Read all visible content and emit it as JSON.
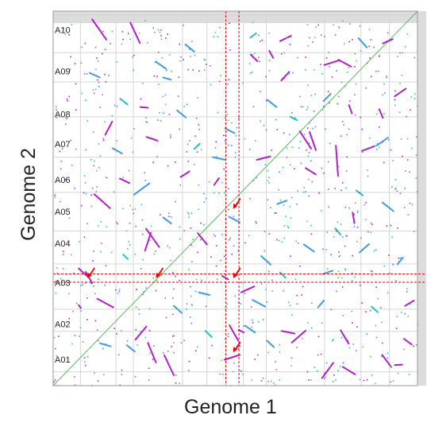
{
  "chart_data": {
    "type": "scatter",
    "title": "",
    "xlabel": "Genome 1",
    "ylabel": "Genome 2",
    "xlim": [
      0,
      100
    ],
    "ylim": [
      0,
      100
    ],
    "y_chromosome_labels": [
      "A01",
      "A02",
      "A03",
      "A04",
      "A05",
      "A06",
      "A07",
      "A08",
      "A09",
      "A10"
    ],
    "y_chromosome_label_positions": [
      7,
      16.5,
      27.5,
      38,
      46.5,
      55,
      64.5,
      72.5,
      84,
      95
    ],
    "x_grid_breaks": [
      7.5,
      17.2,
      22.0,
      35.5,
      42.2,
      52.2,
      58.5,
      74.5,
      84.5,
      92.3
    ],
    "y_grid_breaks": [
      3.7,
      14.5,
      20.4,
      29.8,
      32.5,
      41.3,
      51.6,
      61.0,
      71.8,
      81.1,
      88.9,
      99.0
    ],
    "highlight_x_range": [
      47.4,
      51.0
    ],
    "highlight_y_range": [
      27.6,
      29.8
    ],
    "diagonal": {
      "from": [
        0,
        0
      ],
      "to": [
        100,
        100
      ],
      "color": "#5cb85c"
    },
    "series": [
      {
        "name": "syntenic-blocks-magenta",
        "color": "#b41ec8",
        "segments": [
          [
            [
              10.7,
              97.8
            ],
            [
              14.6,
              92.4
            ]
          ],
          [
            [
              21.2,
              96.9
            ],
            [
              23.8,
              91.5
            ]
          ],
          [
            [
              14.3,
              67.0
            ],
            [
              16.2,
              70.5
            ]
          ],
          [
            [
              15.6,
              47.4
            ],
            [
              11.3,
              51.1
            ]
          ],
          [
            [
              25.6,
              66.4
            ],
            [
              28.4,
              65.5
            ]
          ],
          [
            [
              25.5,
              41.9
            ],
            [
              29.1,
              37.0
            ]
          ],
          [
            [
              25.2,
              36.0
            ],
            [
              26.8,
              40.8
            ]
          ],
          [
            [
              39.7,
              40.7
            ],
            [
              42.2,
              37.7
            ]
          ],
          [
            [
              9.4,
              29.2
            ],
            [
              7.0,
              31.3
            ]
          ],
          [
            [
              8.9,
              30.4
            ],
            [
              10.7,
              27.4
            ]
          ],
          [
            [
              12.1,
              23.2
            ],
            [
              16.5,
              20.9
            ]
          ],
          [
            [
              7.0,
              21.5
            ],
            [
              7.6,
              20.7
            ]
          ],
          [
            [
              30.5,
              8.1
            ],
            [
              33.1,
              2.8
            ]
          ],
          [
            [
              26.0,
              11.4
            ],
            [
              28.2,
              6.2
            ]
          ],
          [
            [
              22.6,
              12.3
            ],
            [
              25.6,
              15.8
            ]
          ],
          [
            [
              46.4,
              29.3
            ],
            [
              48.0,
              28.4
            ]
          ],
          [
            [
              47.0,
              6.9
            ],
            [
              51.2,
              8.2
            ]
          ],
          [
            [
              48.4,
              16.1
            ],
            [
              50.8,
              12.0
            ]
          ],
          [
            [
              50.9,
              14.9
            ],
            [
              52.3,
              14.2
            ]
          ],
          [
            [
              65.5,
              11.5
            ],
            [
              69.3,
              14.7
            ]
          ],
          [
            [
              62.7,
              14.6
            ],
            [
              66.3,
              13.9
            ]
          ],
          [
            [
              54.2,
              88.4
            ],
            [
              56.1,
              86.6
            ]
          ],
          [
            [
              70.4,
              67.7
            ],
            [
              72.1,
              62.9
            ]
          ],
          [
            [
              67.7,
              67.9
            ],
            [
              70.8,
              63.3
            ]
          ],
          [
            [
              77.6,
              64.1
            ],
            [
              78.2,
              56.0
            ]
          ],
          [
            [
              82.7,
              43.4
            ],
            [
              82.2,
              46.2
            ]
          ],
          [
            [
              84.8,
              62.7
            ],
            [
              88.1,
              63.9
            ]
          ],
          [
            [
              74.4,
              85.6
            ],
            [
              78.6,
              86.9
            ]
          ],
          [
            [
              90.5,
              91.4
            ],
            [
              93.1,
              92.5
            ]
          ],
          [
            [
              93.8,
              77.3
            ],
            [
              96.8,
              79.3
            ]
          ],
          [
            [
              96.6,
              21.3
            ],
            [
              99.0,
              22.7
            ]
          ],
          [
            [
              90.3,
              8.2
            ],
            [
              92.8,
              5.0
            ]
          ],
          [
            [
              76.9,
              6.1
            ],
            [
              73.8,
              2.0
            ]
          ],
          [
            [
              79.5,
              5.0
            ],
            [
              82.9,
              3.0
            ]
          ],
          [
            [
              93.8,
              5.5
            ],
            [
              95.8,
              5.6
            ]
          ],
          [
            [
              81.1,
              11.2
            ],
            [
              78.9,
              14.8
            ]
          ],
          [
            [
              51.6,
              24.9
            ],
            [
              55.2,
              26.5
            ]
          ],
          [
            [
              96.3,
              12.5
            ],
            [
              98.4,
              11.0
            ]
          ],
          [
            [
              55.9,
              60.3
            ],
            [
              59.6,
              61.2
            ]
          ],
          [
            [
              44.2,
              53.6
            ],
            [
              45.5,
              55.4
            ]
          ],
          [
            [
              23.9,
              74.4
            ],
            [
              26.0,
              74.2
            ]
          ],
          [
            [
              81.2,
              74.9
            ],
            [
              82.0,
              72.7
            ]
          ],
          [
            [
              62.6,
              81.5
            ],
            [
              64.8,
              83.8
            ]
          ],
          [
            [
              62.3,
              92.0
            ],
            [
              65.3,
              93.4
            ]
          ],
          [
            [
              90.5,
              71.5
            ],
            [
              89.5,
              73.8
            ]
          ],
          [
            [
              69.3,
              58.1
            ],
            [
              72.1,
              56.4
            ]
          ],
          [
            [
              78.3,
              87.0
            ],
            [
              81.8,
              85.2
            ]
          ],
          [
            [
              60.4,
              87.5
            ],
            [
              59.3,
              89.4
            ]
          ],
          [
            [
              18.3,
              55.3
            ],
            [
              20.9,
              54.1
            ]
          ],
          [
            [
              35.0,
              55.7
            ],
            [
              37.4,
              57.2
            ]
          ]
        ]
      },
      {
        "name": "syntenic-blocks-blue",
        "color": "#3d9be0",
        "segments": [
          [
            [
              28.3,
              86.4
            ],
            [
              31.0,
              84.6
            ]
          ],
          [
            [
              22.2,
              51.0
            ],
            [
              26.4,
              54.0
            ]
          ],
          [
            [
              30.2,
              82.3
            ],
            [
              32.3,
              81.7
            ]
          ],
          [
            [
              43.8,
              61.0
            ],
            [
              47.2,
              60.3
            ]
          ],
          [
            [
              48.3,
              45.1
            ],
            [
              51.2,
              43.6
            ]
          ],
          [
            [
              52.7,
              16.0
            ],
            [
              55.4,
              14.2
            ]
          ],
          [
            [
              58.7,
              12.0
            ],
            [
              60.6,
              10.3
            ]
          ],
          [
            [
              54.7,
              22.9
            ],
            [
              58.2,
              21.1
            ]
          ],
          [
            [
              76.2,
              77.9
            ],
            [
              74.2,
              76.0
            ]
          ],
          [
            [
              90.4,
              48.9
            ],
            [
              93.4,
              46.6
            ]
          ],
          [
            [
              86.7,
              37.8
            ],
            [
              84.1,
              35.6
            ]
          ],
          [
            [
              94.5,
              32.4
            ],
            [
              96.0,
              34.2
            ]
          ],
          [
            [
              36.3,
              91.1
            ],
            [
              38.7,
              89.2
            ]
          ],
          [
            [
              86.1,
              90.3
            ],
            [
              83.8,
              92.8
            ]
          ],
          [
            [
              10.0,
              83.5
            ],
            [
              12.8,
              82.3
            ]
          ],
          [
            [
              47.2,
              68.7
            ],
            [
              49.8,
              67.4
            ]
          ],
          [
            [
              36.4,
              71.6
            ],
            [
              34.0,
              73.5
            ]
          ],
          [
            [
              64.1,
              49.4
            ],
            [
              61.5,
              48.5
            ]
          ],
          [
            [
              57.1,
              34.6
            ],
            [
              59.7,
              32.3
            ]
          ],
          [
            [
              74.0,
              29.8
            ],
            [
              76.7,
              30.7
            ]
          ],
          [
            [
              72.7,
              20.9
            ],
            [
              74.3,
              22.7
            ]
          ],
          [
            [
              22.4,
              9.1
            ],
            [
              20.2,
              10.8
            ]
          ],
          [
            [
              35.3,
              19.4
            ],
            [
              33.1,
              21.3
            ]
          ],
          [
            [
              42.9,
              24.2
            ],
            [
              40.0,
              24.9
            ]
          ],
          [
            [
              68.8,
              37.7
            ],
            [
              71.6,
              35.8
            ]
          ],
          [
            [
              30.2,
              44.9
            ],
            [
              32.4,
              43.3
            ]
          ],
          [
            [
              16.3,
              63.4
            ],
            [
              18.9,
              62.0
            ]
          ],
          [
            [
              58.8,
              76.3
            ],
            [
              61.3,
              74.4
            ]
          ],
          [
            [
              88.8,
              64.1
            ],
            [
              91.9,
              66.2
            ]
          ],
          [
            [
              12.9,
              11.3
            ],
            [
              15.8,
              10.5
            ]
          ]
        ]
      },
      {
        "name": "syntenic-blocks-cyan",
        "color": "#1fc4bf",
        "segments": [
          [
            [
              38.7,
              63.2
            ],
            [
              40.2,
              64.6
            ]
          ],
          [
            [
              65.1,
              71.8
            ],
            [
              66.9,
              70.9
            ]
          ],
          [
            [
              83.2,
              52.1
            ],
            [
              85.0,
              50.8
            ]
          ],
          [
            [
              62.3,
              30.2
            ],
            [
              63.8,
              28.8
            ]
          ],
          [
            [
              20.5,
              33.8
            ],
            [
              19.2,
              35.0
            ]
          ],
          [
            [
              54.1,
              92.9
            ],
            [
              55.7,
              94.1
            ]
          ],
          [
            [
              77.4,
              42.0
            ],
            [
              78.9,
              40.3
            ]
          ],
          [
            [
              41.8,
              14.6
            ],
            [
              43.5,
              13.0
            ]
          ],
          [
            [
              87.4,
              21.1
            ],
            [
              89.1,
              19.6
            ]
          ],
          [
            [
              18.4,
              76.6
            ],
            [
              20.4,
              75.1
            ]
          ]
        ]
      }
    ],
    "annotations": [
      {
        "type": "arrow",
        "color": "#e60000",
        "tip": [
          49.4,
          47.2
        ]
      },
      {
        "type": "arrow",
        "color": "#e60000",
        "tip": [
          9.4,
          28.7
        ]
      },
      {
        "type": "arrow",
        "color": "#e60000",
        "tip": [
          28.2,
          28.7
        ]
      },
      {
        "type": "arrow",
        "color": "#e60000",
        "tip": [
          49.4,
          28.7
        ]
      },
      {
        "type": "arrow",
        "color": "#e60000",
        "tip": [
          49.4,
          8.9
        ]
      }
    ],
    "legend": "none",
    "grid": true
  }
}
